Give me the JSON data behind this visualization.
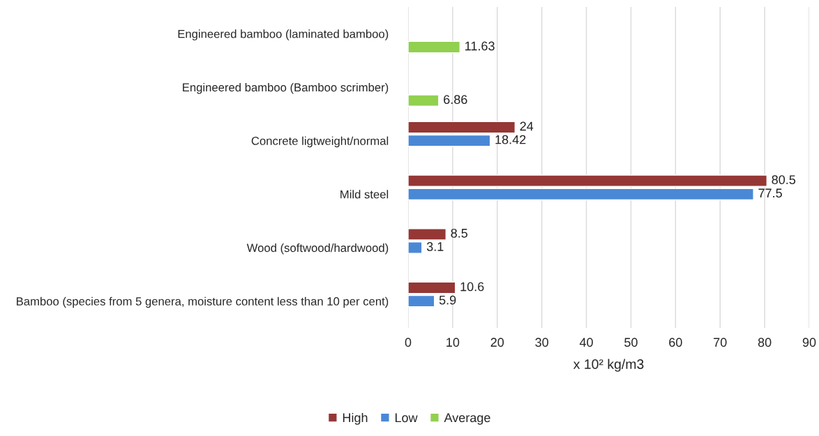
{
  "chart_data": {
    "type": "bar",
    "orientation": "horizontal",
    "categories": [
      "Engineered bamboo (laminated bamboo)",
      "Engineered bamboo (Bamboo scrimber)",
      "Concrete ligtweight/normal",
      "Mild steel",
      "Wood (softwood/hardwood)",
      "Bamboo (species from 5 genera, moisture content less than 10 per cent)"
    ],
    "series": [
      {
        "name": "High",
        "color": "#953735",
        "values": [
          null,
          null,
          24,
          80.5,
          8.5,
          10.6
        ]
      },
      {
        "name": "Low",
        "color": "#4a88d6",
        "values": [
          null,
          null,
          18.42,
          77.5,
          3.1,
          5.9
        ]
      },
      {
        "name": "Average",
        "color": "#92d050",
        "values": [
          11.63,
          6.86,
          null,
          null,
          null,
          null
        ]
      }
    ],
    "xlabel": "x 10² kg/m3",
    "xlim": [
      0,
      90
    ],
    "xticks": [
      0,
      10,
      20,
      30,
      40,
      50,
      60,
      70,
      80,
      90
    ],
    "grid": "x",
    "legend": "bottom",
    "data_labels": true
  }
}
